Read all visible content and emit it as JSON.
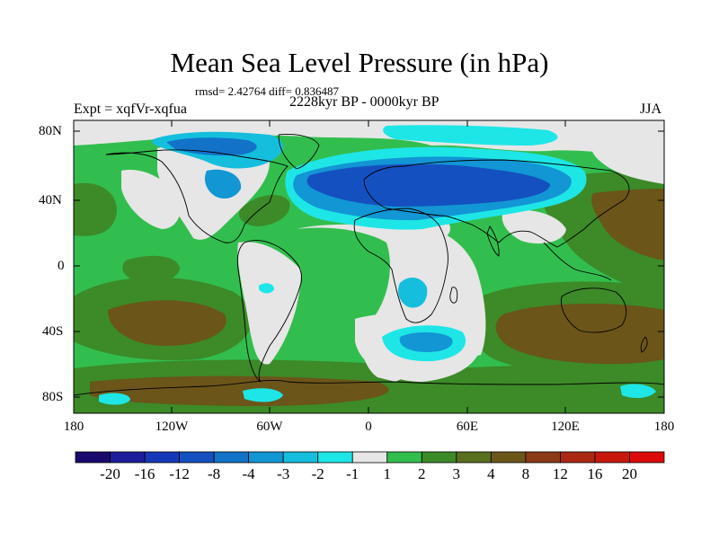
{
  "figure": {
    "title": "Mean Sea Level Pressure (in hPa)",
    "stats": "rmsd= 2.42764 diff= 0.836487",
    "period": "2228kyr BP - 0000kyr BP",
    "experiment": "Expt = xqfVr-xqfua",
    "season": "JJA"
  },
  "axes": {
    "y_labels": [
      "80N",
      "40N",
      "0",
      "40S",
      "80S"
    ],
    "x_labels": [
      "180",
      "120W",
      "60W",
      "0",
      "60E",
      "120E",
      "180"
    ]
  },
  "colorbar": {
    "labels": [
      "-20",
      "-16",
      "-12",
      "-8",
      "-4",
      "-3",
      "-2",
      "-1",
      "1",
      "2",
      "3",
      "4",
      "8",
      "12",
      "16",
      "20"
    ],
    "colors": [
      "#1a0a6e",
      "#1c1e9c",
      "#1538b8",
      "#1450c0",
      "#1272c8",
      "#1296d4",
      "#15bedd",
      "#1ee6e6",
      "#e6e6e6",
      "#32be4e",
      "#3c8a28",
      "#586f1e",
      "#6b5519",
      "#8a3a16",
      "#aa2812",
      "#c8180c",
      "#dc0a0a"
    ]
  },
  "map": {
    "palette": {
      "neutral": "#e6e6e6",
      "c_light": "#1ee6e6",
      "c_mid": "#15bedd",
      "c_blue": "#1296d4",
      "c_dark": "#1272c8",
      "c_deep": "#1450c0",
      "g_light": "#32be4e",
      "g_mid": "#3c8a28",
      "g_olive": "#586f1e",
      "g_brown": "#6b5519",
      "coast": "#000000"
    }
  }
}
